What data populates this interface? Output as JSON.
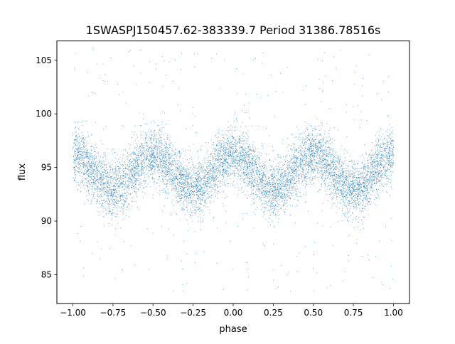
{
  "chart_data": {
    "type": "scatter",
    "title": "1SWASPJ150457.62-383339.7 Period 31386.78516s",
    "xlabel": "phase",
    "ylabel": "flux",
    "xlim": [
      -1.1,
      1.1
    ],
    "ylim": [
      82.3,
      106.8
    ],
    "xticks": [
      -1.0,
      -0.75,
      -0.5,
      -0.25,
      0.0,
      0.25,
      0.5,
      0.75,
      1.0
    ],
    "xtick_labels": [
      "−1.00",
      "−0.75",
      "−0.50",
      "−0.25",
      "0.00",
      "0.25",
      "0.50",
      "0.75",
      "1.00"
    ],
    "yticks": [
      85,
      90,
      95,
      100,
      105
    ],
    "ytick_labels": [
      "85",
      "90",
      "95",
      "100",
      "105"
    ],
    "grid": false,
    "legend": "none",
    "series": [
      {
        "color": "#1f77b4",
        "marker_size": 0.8,
        "description_of_distribution": "phase-folded light curve, x uniform in [-1, 1], flux ~ 94.6 + 1.6*cos(4*pi*(x-0.5)) with scatter ~1.3 and sparse outliers clipped to [83.4, 106.4]",
        "model": {
          "x_range": [
            -1.0,
            1.0
          ],
          "baseline_flux": 94.6,
          "amplitude": 1.6,
          "cycles_per_unit_phase": 2,
          "peak_phase": 0.5,
          "scatter_sigma": 1.3,
          "outlier_fraction": 0.04,
          "flux_clip": [
            83.4,
            106.4
          ]
        }
      }
    ],
    "sample_points": [
      {
        "x": -1.0,
        "y": 96.2
      },
      {
        "x": -0.75,
        "y": 93.0
      },
      {
        "x": -0.5,
        "y": 96.2
      },
      {
        "x": -0.25,
        "y": 93.0
      },
      {
        "x": 0.0,
        "y": 96.2
      },
      {
        "x": 0.25,
        "y": 93.0
      },
      {
        "x": 0.5,
        "y": 96.2
      },
      {
        "x": 0.75,
        "y": 93.0
      },
      {
        "x": 1.0,
        "y": 96.2
      }
    ]
  }
}
